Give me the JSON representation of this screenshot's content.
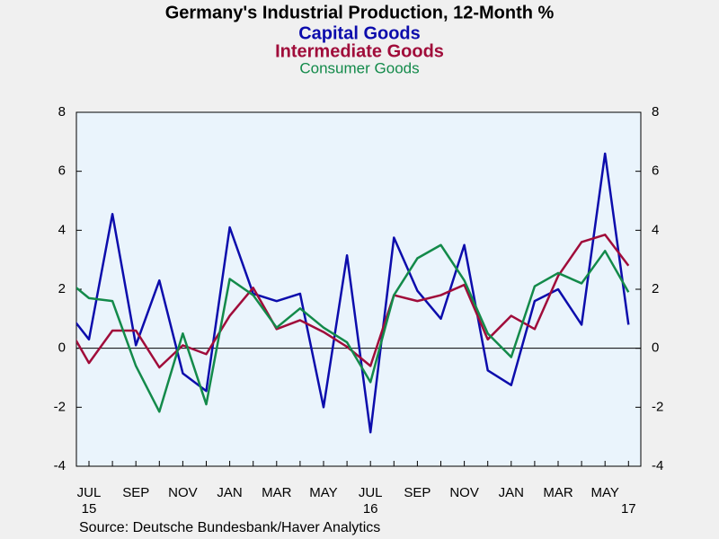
{
  "chart_data": {
    "type": "line",
    "title": "Germany's Industrial Production, 12-Month %",
    "source": "Source:  Deutsche Bundesbank/Haver Analytics",
    "x": [
      "2015-06",
      "2015-07",
      "2015-08",
      "2015-09",
      "2015-10",
      "2015-11",
      "2015-12",
      "2016-01",
      "2016-02",
      "2016-03",
      "2016-04",
      "2016-05",
      "2016-06",
      "2016-07",
      "2016-08",
      "2016-09",
      "2016-10",
      "2016-11",
      "2016-12",
      "2017-01",
      "2017-02",
      "2017-03",
      "2017-04",
      "2017-05",
      "2017-06"
    ],
    "series": [
      {
        "name": "Capital Goods",
        "color": "#0c0cac",
        "values": [
          1.32,
          0.3,
          4.55,
          0.1,
          2.3,
          -0.85,
          -1.45,
          4.1,
          1.85,
          1.6,
          1.85,
          -2.0,
          3.15,
          -2.85,
          3.75,
          1.95,
          1.0,
          3.5,
          -0.75,
          -1.25,
          1.6,
          2.0,
          0.8,
          6.6,
          0.8
        ]
      },
      {
        "name": "Intermediate Goods",
        "color": "#a00c3a",
        "values": [
          0.89,
          -0.5,
          0.6,
          0.6,
          -0.65,
          0.1,
          -0.2,
          1.1,
          2.05,
          0.65,
          0.95,
          0.55,
          0.05,
          -0.6,
          1.8,
          1.6,
          1.8,
          2.15,
          0.3,
          1.1,
          0.65,
          2.45,
          3.6,
          3.85,
          2.8
        ]
      },
      {
        "name": "Consumer Goods",
        "color": "#138a4a",
        "values": [
          2.35,
          1.7,
          1.6,
          -0.6,
          -2.15,
          0.5,
          -1.9,
          2.35,
          1.8,
          0.7,
          1.35,
          0.7,
          0.2,
          -1.15,
          1.8,
          3.05,
          3.5,
          2.3,
          0.5,
          -0.3,
          2.1,
          2.55,
          2.2,
          3.3,
          1.9
        ]
      }
    ],
    "xticks": [
      {
        "value": "2015-07",
        "label": "JUL"
      },
      {
        "value": "2015-09",
        "label": "SEP"
      },
      {
        "value": "2015-11",
        "label": "NOV"
      },
      {
        "value": "2016-01",
        "label": "JAN"
      },
      {
        "value": "2016-03",
        "label": "MAR"
      },
      {
        "value": "2016-05",
        "label": "MAY"
      },
      {
        "value": "2016-07",
        "label": "JUL"
      },
      {
        "value": "2016-09",
        "label": "SEP"
      },
      {
        "value": "2016-11",
        "label": "NOV"
      },
      {
        "value": "2017-01",
        "label": "JAN"
      },
      {
        "value": "2017-03",
        "label": "MAR"
      },
      {
        "value": "2017-05",
        "label": "MAY"
      }
    ],
    "xtick_years": [
      {
        "value": "2015-07",
        "label": "15"
      },
      {
        "value": "2016-07",
        "label": "16"
      },
      {
        "value": "2017-06",
        "label": "17"
      }
    ],
    "ylim": [
      -4,
      8
    ],
    "yticks": [
      -4,
      -2,
      0,
      2,
      4,
      6,
      8
    ],
    "y2lim": [
      -4,
      8
    ],
    "y2ticks": [
      -4,
      -2,
      0,
      2,
      4,
      6,
      8
    ]
  }
}
